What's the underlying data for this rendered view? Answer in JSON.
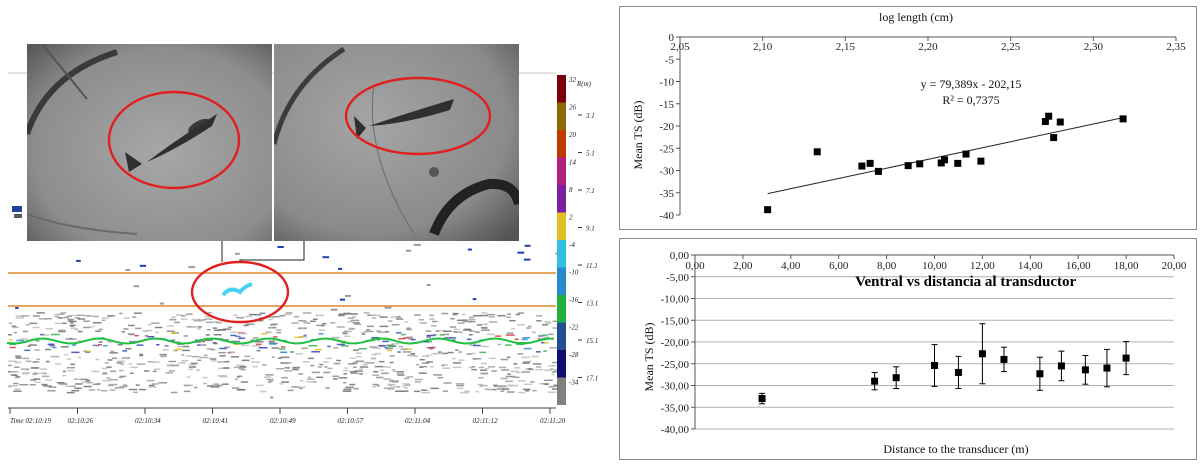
{
  "echogram": {
    "colorbar_values": [
      "32",
      "26",
      "20",
      "14",
      "8",
      "2",
      "-4",
      "-10",
      "-16",
      "-22",
      "-28",
      "-34"
    ],
    "depth_header": "R(m)",
    "depth_values": [
      "3.1",
      "5.1",
      "7.1",
      "9.1",
      "11.1",
      "13.1",
      "15.1",
      "17.1"
    ],
    "time_labels": [
      "Time 02:10:19",
      "02:10:26",
      "02:10:34",
      "02:10:41",
      "02:10:49",
      "02:10:57",
      "02:11:04",
      "02:11:12",
      "02:11:20"
    ],
    "colorbar_colors": [
      "#7a0010",
      "#8b6a00",
      "#c03a00",
      "#b02080",
      "#7a1fa0",
      "#e0c020",
      "#30c0e0",
      "#2a8ad0",
      "#20b040",
      "#205090",
      "#101070",
      "#808080"
    ]
  },
  "chart_data": [
    {
      "type": "scatter",
      "title": "log length (cm)",
      "xlabel": "",
      "ylabel": "Mean TS (dB)",
      "xlim": [
        2.05,
        2.35
      ],
      "ylim": [
        -40,
        0
      ],
      "x_ticks": [
        "2,05",
        "2,10",
        "2,15",
        "2,20",
        "2,25",
        "2,30",
        "2,35"
      ],
      "y_ticks": [
        "0",
        "-5",
        "-10",
        "-15",
        "-20",
        "-25",
        "-30",
        "-35",
        "-40"
      ],
      "points": [
        {
          "x": 2.103,
          "y": -38.8
        },
        {
          "x": 2.133,
          "y": -25.8
        },
        {
          "x": 2.16,
          "y": -29.0
        },
        {
          "x": 2.165,
          "y": -28.4
        },
        {
          "x": 2.17,
          "y": -30.2
        },
        {
          "x": 2.188,
          "y": -28.9
        },
        {
          "x": 2.195,
          "y": -28.5
        },
        {
          "x": 2.208,
          "y": -28.3
        },
        {
          "x": 2.21,
          "y": -27.6
        },
        {
          "x": 2.218,
          "y": -28.4
        },
        {
          "x": 2.223,
          "y": -26.3
        },
        {
          "x": 2.232,
          "y": -27.9
        },
        {
          "x": 2.271,
          "y": -19.0
        },
        {
          "x": 2.273,
          "y": -17.8
        },
        {
          "x": 2.276,
          "y": -22.6
        },
        {
          "x": 2.28,
          "y": -19.1
        },
        {
          "x": 2.318,
          "y": -18.4
        }
      ],
      "trendline": {
        "slope": 79.389,
        "intercept": -202.15
      },
      "equation": "y = 79,389x - 202,15",
      "r_squared": "R² = 0,7375",
      "grid": false
    },
    {
      "type": "scatter",
      "title": "Ventral vs distancia al transductor",
      "xlabel": "Distance to the transducer (m)",
      "ylabel": "Mean TS (dB)",
      "xlim": [
        0,
        20
      ],
      "ylim": [
        -40,
        0
      ],
      "x_ticks": [
        "0,00",
        "2,00",
        "4,00",
        "6,00",
        "8,00",
        "10,00",
        "12,00",
        "14,00",
        "16,00",
        "18,00",
        "20,00"
      ],
      "y_ticks": [
        "0,00",
        "-5,00",
        "-10,00",
        "-15,00",
        "-20,00",
        "-25,00",
        "-30,00",
        "-35,00",
        "-40,00"
      ],
      "points": [
        {
          "x": 2.8,
          "y": -33.0,
          "err": 1.2
        },
        {
          "x": 7.5,
          "y": -29.0,
          "err": 2.0
        },
        {
          "x": 8.4,
          "y": -28.2,
          "err": 2.5
        },
        {
          "x": 10.0,
          "y": -25.4,
          "err": 4.8
        },
        {
          "x": 11.0,
          "y": -27.0,
          "err": 3.7
        },
        {
          "x": 12.0,
          "y": -22.7,
          "err": 6.9
        },
        {
          "x": 12.9,
          "y": -24.0,
          "err": 2.8
        },
        {
          "x": 14.4,
          "y": -27.3,
          "err": 3.8
        },
        {
          "x": 15.3,
          "y": -25.5,
          "err": 3.4
        },
        {
          "x": 16.3,
          "y": -26.4,
          "err": 3.3
        },
        {
          "x": 17.2,
          "y": -26.0,
          "err": 4.3
        },
        {
          "x": 18.0,
          "y": -23.7,
          "err": 3.8
        }
      ],
      "grid": true
    }
  ]
}
